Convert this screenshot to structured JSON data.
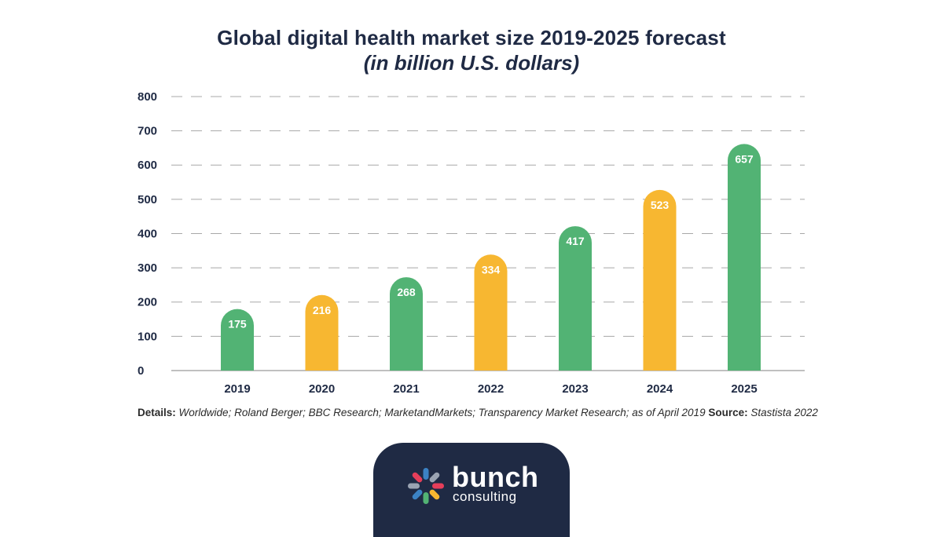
{
  "chart_data": {
    "type": "bar",
    "title": "Global digital health market size 2019-2025 forecast",
    "subtitle": "(in billion U.S. dollars)",
    "categories": [
      "2019",
      "2020",
      "2021",
      "2022",
      "2023",
      "2024",
      "2025"
    ],
    "values": [
      175,
      216,
      268,
      334,
      417,
      523,
      657
    ],
    "bar_colors": [
      "#52b374",
      "#f7b731",
      "#52b374",
      "#f7b731",
      "#52b374",
      "#f7b731",
      "#52b374"
    ],
    "ylim": [
      0,
      800
    ],
    "yticks": [
      0,
      100,
      200,
      300,
      400,
      500,
      600,
      700,
      800
    ],
    "xlabel": "",
    "ylabel": "",
    "grid": "dashed horizontal"
  },
  "footnote": {
    "details_label": "Details:",
    "details_text": "Worldwide; Roland Berger; BBC Research; MarketandMarkets; Transparency Market Research; as of April 2019",
    "source_label": "Source:",
    "source_text": "Stastista 2022"
  },
  "logo": {
    "name": "bunch",
    "sub": "consulting",
    "colors": [
      "#e53e5a",
      "#3b82c4",
      "#f7b731",
      "#52b374",
      "#9aa3b2"
    ]
  }
}
